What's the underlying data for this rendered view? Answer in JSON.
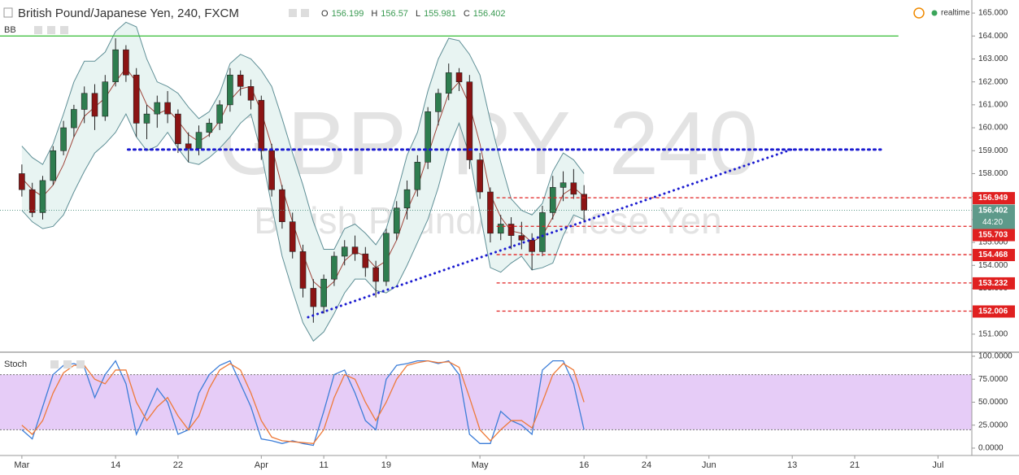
{
  "chart_data": {
    "type": "candlestick",
    "title": "British Pound/Japanese Yen, 240, FXCM",
    "quote": [
      {
        "label": "O",
        "value": 156.199
      },
      {
        "label": "H",
        "value": 156.57
      },
      {
        "label": "L",
        "value": 155.981
      },
      {
        "label": "C",
        "value": 156.402
      }
    ],
    "status": "realtime",
    "watermark": [
      "GBPJPY, 240",
      "British Pound/Japanese Yen"
    ],
    "up_color": "#2e7d4f",
    "down_color": "#8b1414",
    "x": [
      0,
      1,
      2,
      3,
      4,
      5,
      6,
      7,
      8,
      9,
      10,
      11,
      12,
      13,
      14,
      15,
      16,
      17,
      18,
      19,
      20,
      21,
      22,
      23,
      24,
      25,
      26,
      27,
      28,
      29,
      30,
      31,
      32,
      33,
      34,
      35,
      36,
      37,
      38,
      39,
      40,
      41,
      42,
      43,
      44,
      45,
      46,
      47,
      48,
      49,
      50,
      51,
      52,
      53,
      54
    ],
    "open": [
      158.0,
      157.3,
      156.3,
      157.7,
      159.0,
      160.0,
      160.8,
      161.5,
      160.5,
      162.0,
      163.4,
      162.3,
      160.2,
      160.6,
      161.1,
      160.6,
      159.3,
      159.1,
      159.8,
      160.2,
      161.0,
      162.3,
      161.8,
      161.2,
      159.0,
      157.3,
      155.9,
      154.6,
      153.0,
      152.2,
      153.4,
      154.4,
      154.8,
      154.5,
      153.9,
      153.3,
      155.4,
      156.5,
      157.3,
      158.5,
      160.7,
      161.5,
      162.4,
      162.0,
      158.6,
      157.2,
      155.4,
      155.8,
      155.3,
      155.1,
      154.6,
      156.3,
      157.4,
      157.6,
      157.1
    ],
    "high": [
      158.4,
      157.6,
      157.9,
      159.2,
      160.3,
      161.0,
      161.8,
      161.9,
      162.3,
      163.9,
      163.6,
      162.6,
      161.0,
      161.4,
      161.6,
      160.8,
      159.8,
      160.1,
      160.4,
      161.2,
      162.6,
      162.5,
      162.1,
      161.4,
      159.3,
      157.5,
      156.3,
      154.9,
      153.4,
      153.6,
      154.6,
      155.1,
      155.3,
      154.8,
      154.2,
      155.6,
      156.8,
      157.7,
      158.8,
      160.9,
      161.7,
      162.8,
      162.6,
      162.3,
      158.9,
      157.4,
      156.2,
      156.1,
      155.9,
      155.4,
      156.6,
      157.9,
      158.1,
      158.2,
      157.5
    ],
    "low": [
      157.0,
      156.1,
      156.0,
      157.5,
      158.8,
      159.6,
      160.2,
      159.9,
      160.3,
      161.8,
      162.0,
      159.6,
      159.5,
      160.0,
      160.2,
      158.9,
      158.5,
      158.8,
      159.6,
      159.9,
      160.7,
      161.4,
      160.8,
      158.6,
      157.0,
      155.6,
      154.3,
      152.6,
      151.5,
      151.9,
      153.1,
      154.0,
      154.2,
      153.5,
      152.6,
      153.1,
      155.1,
      156.0,
      157.0,
      158.2,
      160.1,
      161.2,
      161.6,
      158.2,
      156.9,
      155.0,
      155.1,
      154.7,
      154.7,
      153.8,
      154.4,
      156.0,
      156.8,
      156.9,
      155.9
    ],
    "close": [
      157.3,
      156.3,
      157.7,
      159.0,
      160.0,
      160.8,
      161.5,
      160.5,
      162.0,
      163.4,
      162.3,
      160.2,
      160.6,
      161.1,
      160.6,
      159.3,
      159.1,
      159.8,
      160.2,
      161.0,
      162.3,
      161.8,
      161.2,
      159.0,
      157.3,
      155.9,
      154.6,
      153.0,
      152.2,
      153.4,
      154.4,
      154.8,
      154.5,
      153.9,
      153.3,
      155.4,
      156.5,
      157.3,
      158.5,
      160.7,
      161.5,
      162.4,
      162.0,
      158.6,
      157.2,
      155.4,
      155.8,
      155.3,
      155.1,
      154.6,
      156.3,
      157.4,
      157.6,
      157.1,
      156.4
    ],
    "xlim": [
      -2.1,
      91.25
    ],
    "xticks": [
      {
        "value": 0,
        "label": "Mar"
      },
      {
        "value": 9,
        "label": "14"
      },
      {
        "value": 15,
        "label": "22"
      },
      {
        "value": 23,
        "label": "Apr"
      },
      {
        "value": 29,
        "label": "11"
      },
      {
        "value": 35,
        "label": "19"
      },
      {
        "value": 44,
        "label": "May"
      },
      {
        "value": 54,
        "label": "16"
      },
      {
        "value": 60,
        "label": "24"
      },
      {
        "value": 66,
        "label": "Jun"
      },
      {
        "value": 74,
        "label": "13"
      },
      {
        "value": 80,
        "label": "21"
      },
      {
        "value": 88,
        "label": "Jul"
      }
    ],
    "ylim": [
      150.25,
      165.57
    ],
    "yticks": [
      {
        "value": 151,
        "label": "151.000"
      },
      {
        "value": 152,
        "label": "152.000"
      },
      {
        "value": 153,
        "label": "153.000"
      },
      {
        "value": 154,
        "label": "154.000"
      },
      {
        "value": 155,
        "label": "155.000"
      },
      {
        "value": 156,
        "label": "156.000"
      },
      {
        "value": 157,
        "label": "157.000"
      },
      {
        "value": 158,
        "label": "158.000"
      },
      {
        "value": 159,
        "label": "159.000"
      },
      {
        "value": 160,
        "label": "160.000"
      },
      {
        "value": 161,
        "label": "161.000"
      },
      {
        "value": 162,
        "label": "162.000"
      },
      {
        "value": 163,
        "label": "163.000"
      },
      {
        "value": 164,
        "label": "164.000"
      },
      {
        "value": 165,
        "label": "165.000"
      }
    ],
    "bb": {
      "name": "BB",
      "band_color": "#5f8f96",
      "basis_color": "#a0463c",
      "fill": "#e8f4f2",
      "upper": [
        159.2,
        158.7,
        158.4,
        159.3,
        160.6,
        162.0,
        162.9,
        162.9,
        163.3,
        164.2,
        164.6,
        164.4,
        163.0,
        162.0,
        161.8,
        161.5,
        160.9,
        160.4,
        160.7,
        161.5,
        162.8,
        163.2,
        163.0,
        162.5,
        161.8,
        160.4,
        158.9,
        157.5,
        155.9,
        154.7,
        154.7,
        155.6,
        155.8,
        155.4,
        154.9,
        155.6,
        157.1,
        158.8,
        159.8,
        161.6,
        163.0,
        163.9,
        163.8,
        163.2,
        162.3,
        160.3,
        158.5,
        156.9,
        156.4,
        156.2,
        156.7,
        158.1,
        158.9,
        158.6,
        158.0
      ],
      "basis": [
        157.8,
        157.3,
        157.0,
        157.5,
        158.4,
        159.6,
        160.5,
        160.9,
        161.3,
        162.0,
        162.6,
        162.0,
        161.0,
        160.6,
        160.8,
        160.3,
        159.7,
        159.4,
        159.7,
        160.3,
        161.2,
        161.7,
        161.8,
        160.7,
        159.2,
        157.4,
        155.9,
        154.5,
        153.3,
        152.9,
        153.3,
        154.2,
        154.6,
        154.4,
        153.9,
        154.2,
        155.1,
        156.4,
        157.4,
        158.8,
        160.2,
        161.5,
        162.0,
        161.0,
        159.3,
        157.1,
        156.1,
        155.5,
        155.4,
        155.0,
        155.3,
        156.1,
        157.1,
        157.4,
        157.0
      ],
      "lower": [
        156.4,
        155.9,
        155.6,
        155.7,
        156.2,
        157.2,
        158.1,
        158.9,
        159.3,
        159.8,
        160.6,
        159.6,
        159.0,
        159.2,
        159.8,
        159.1,
        158.5,
        158.4,
        158.7,
        159.1,
        159.6,
        160.2,
        160.6,
        158.9,
        156.6,
        154.4,
        152.9,
        151.5,
        150.7,
        151.1,
        151.9,
        152.8,
        153.4,
        153.4,
        152.9,
        152.8,
        153.1,
        154.0,
        155.0,
        156.0,
        157.4,
        159.1,
        160.2,
        158.8,
        156.3,
        153.9,
        153.7,
        154.1,
        154.4,
        153.8,
        153.9,
        154.1,
        155.3,
        156.2,
        156.0
      ]
    },
    "levels": [
      {
        "price": 164.0,
        "from": -2.1,
        "to": 84.2,
        "color": "#33bb33",
        "style": "solid"
      },
      {
        "price": 159.05,
        "from": 10.2,
        "to": 82.5,
        "color": "#1a1ad0",
        "style": "dotted"
      },
      {
        "price": 156.949,
        "from": 45.6,
        "to": 91.25,
        "color": "#e02020",
        "style": "dashed",
        "label": true
      },
      {
        "price": 155.703,
        "from": 45.6,
        "to": 91.25,
        "color": "#e02020",
        "style": "dashed",
        "label": true
      },
      {
        "price": 154.468,
        "from": 45.6,
        "to": 91.25,
        "color": "#e02020",
        "style": "dashed",
        "label": true
      },
      {
        "price": 153.232,
        "from": 45.6,
        "to": 91.25,
        "color": "#e02020",
        "style": "dashed",
        "label": true
      },
      {
        "price": 152.006,
        "from": 45.6,
        "to": 91.25,
        "color": "#e02020",
        "style": "dashed",
        "label": true
      }
    ],
    "trendlines": [
      {
        "x": [
          27.5,
          74.1
        ],
        "price": [
          151.74,
          159.08
        ],
        "color": "#1a1ad0"
      }
    ],
    "last_price": 156.402,
    "last_color": "#5e9a8a",
    "countdown": "44:20",
    "stoch": {
      "name": "Stoch",
      "k_color": "#3d7ed8",
      "d_color": "#ee7a3a",
      "band_fill": "#e6ccf7",
      "band": [
        20,
        80
      ],
      "ylim": [
        -8,
        104.4
      ],
      "yticks": [
        {
          "value": 0,
          "label": "0.0000"
        },
        {
          "value": 25,
          "label": "25.0000"
        },
        {
          "value": 50,
          "label": "50.0000"
        },
        {
          "value": 75,
          "label": "75.0000"
        },
        {
          "value": 100,
          "label": "100.0000"
        }
      ],
      "k": [
        20,
        10,
        45,
        80,
        90,
        92,
        88,
        55,
        80,
        95,
        70,
        15,
        40,
        65,
        50,
        15,
        20,
        60,
        80,
        90,
        95,
        70,
        45,
        10,
        8,
        5,
        8,
        5,
        3,
        40,
        80,
        85,
        60,
        30,
        20,
        75,
        90,
        92,
        95,
        95,
        92,
        95,
        80,
        15,
        5,
        5,
        40,
        30,
        25,
        15,
        85,
        95,
        95,
        70,
        20
      ],
      "d": [
        25,
        15,
        30,
        60,
        82,
        90,
        90,
        75,
        70,
        85,
        85,
        50,
        30,
        45,
        55,
        35,
        20,
        35,
        65,
        85,
        92,
        85,
        60,
        30,
        12,
        8,
        7,
        6,
        5,
        20,
        55,
        80,
        75,
        50,
        30,
        50,
        75,
        90,
        93,
        95,
        93,
        94,
        88,
        55,
        20,
        8,
        20,
        30,
        30,
        22,
        50,
        80,
        92,
        85,
        50
      ]
    }
  }
}
